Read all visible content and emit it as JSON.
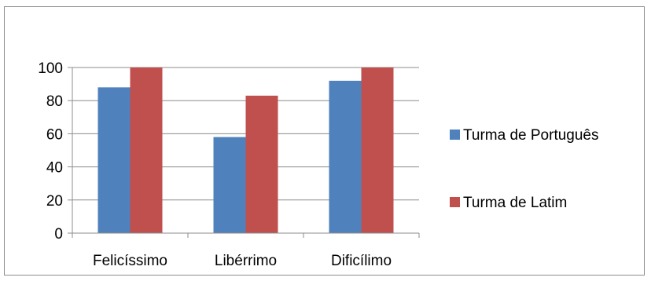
{
  "chart_data": {
    "type": "bar",
    "title": "",
    "xlabel": "",
    "ylabel": "",
    "categories": [
      "Felicíssimo",
      "Libérrimo",
      "Dificílimo"
    ],
    "series": [
      {
        "name": "Turma de Português",
        "color": "#4f81bd",
        "values": [
          88,
          58,
          92
        ]
      },
      {
        "name": "Turma de Latim",
        "color": "#c0504d",
        "values": [
          100,
          83,
          100
        ]
      }
    ],
    "ylim": [
      0,
      100
    ],
    "yticks": [
      0,
      20,
      40,
      60,
      80,
      100
    ],
    "grid": true,
    "legend_position": "right"
  }
}
